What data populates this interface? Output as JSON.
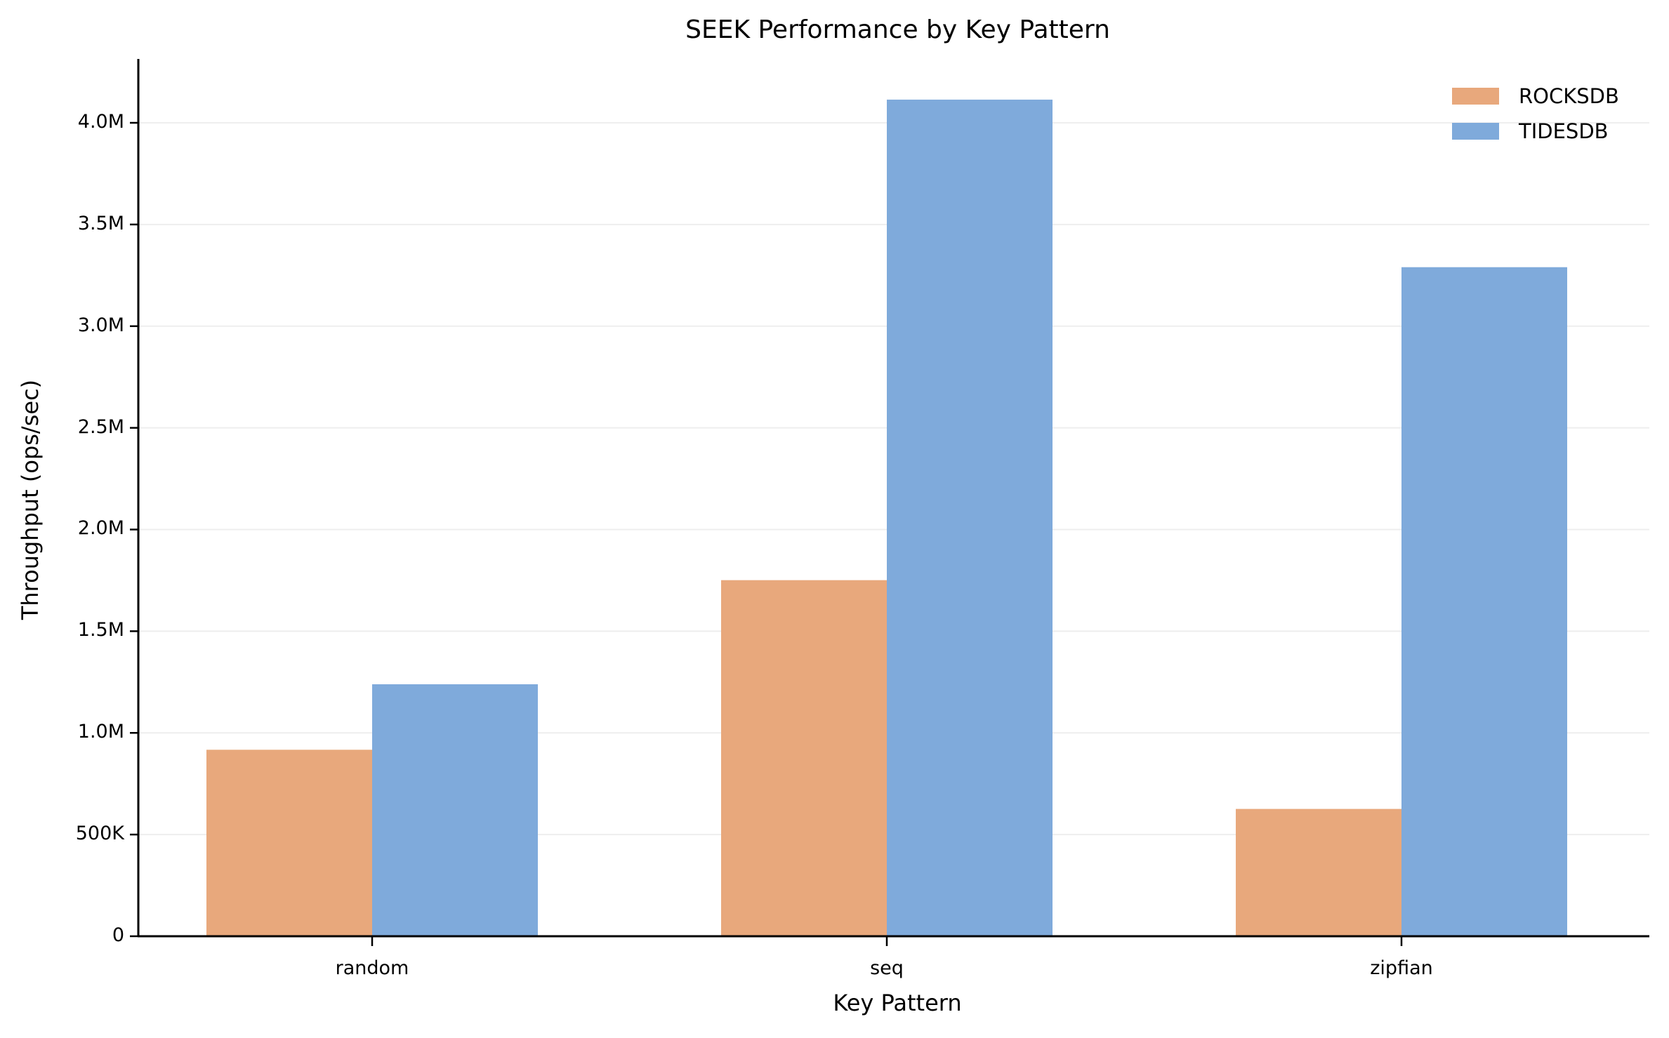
{
  "chart_data": {
    "type": "bar",
    "title": "SEEK Performance by Key Pattern",
    "xlabel": "Key Pattern",
    "ylabel": "Throughput (ops/sec)",
    "categories": [
      "random",
      "seq",
      "zipfian"
    ],
    "series": [
      {
        "name": "ROCKSDB",
        "color": "#E8A87C",
        "values": [
          917000,
          1751000,
          626000
        ]
      },
      {
        "name": "TIDESDB",
        "color": "#7FAADB",
        "values": [
          1239000,
          4114000,
          3290000
        ]
      }
    ],
    "ylim": [
      0,
      4314000
    ],
    "yticks": [
      0,
      500000,
      1000000,
      1500000,
      2000000,
      2500000,
      3000000,
      3500000,
      4000000
    ],
    "ytick_labels": [
      "0",
      "500K",
      "1.0M",
      "1.5M",
      "2.0M",
      "2.5M",
      "3.0M",
      "3.5M",
      "4.0M"
    ],
    "grid": "y",
    "legend_position": "upper right"
  },
  "legend": {
    "items": [
      {
        "label": "ROCKSDB",
        "color": "#E8A87C"
      },
      {
        "label": "TIDESDB",
        "color": "#7FAADB"
      }
    ]
  }
}
